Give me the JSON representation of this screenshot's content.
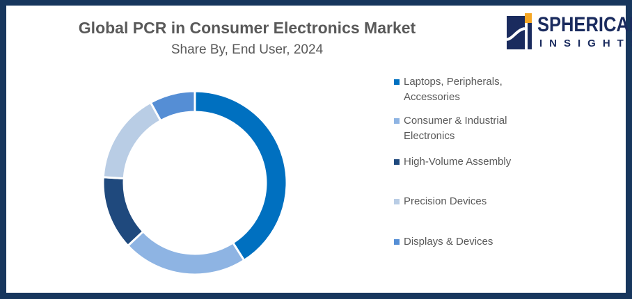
{
  "chart_data": {
    "type": "pie",
    "variant": "donut",
    "title": "Global PCR in Consumer Electronics Market",
    "subtitle": "Share By, End User, 2024",
    "categories": [
      "Laptops, Peripherals, Accessories",
      "Consumer & Industrial Electronics",
      "High-Volume Assembly",
      "Precision Devices",
      "Displays & Devices"
    ],
    "values": [
      41,
      22,
      13,
      16,
      8
    ],
    "colors": [
      "#0070c0",
      "#8eb4e3",
      "#1f497d",
      "#b9cde5",
      "#558ed5"
    ],
    "legend": "right"
  },
  "logo": {
    "line1": "SPHERICAL",
    "line2": "INSIGHTS"
  }
}
